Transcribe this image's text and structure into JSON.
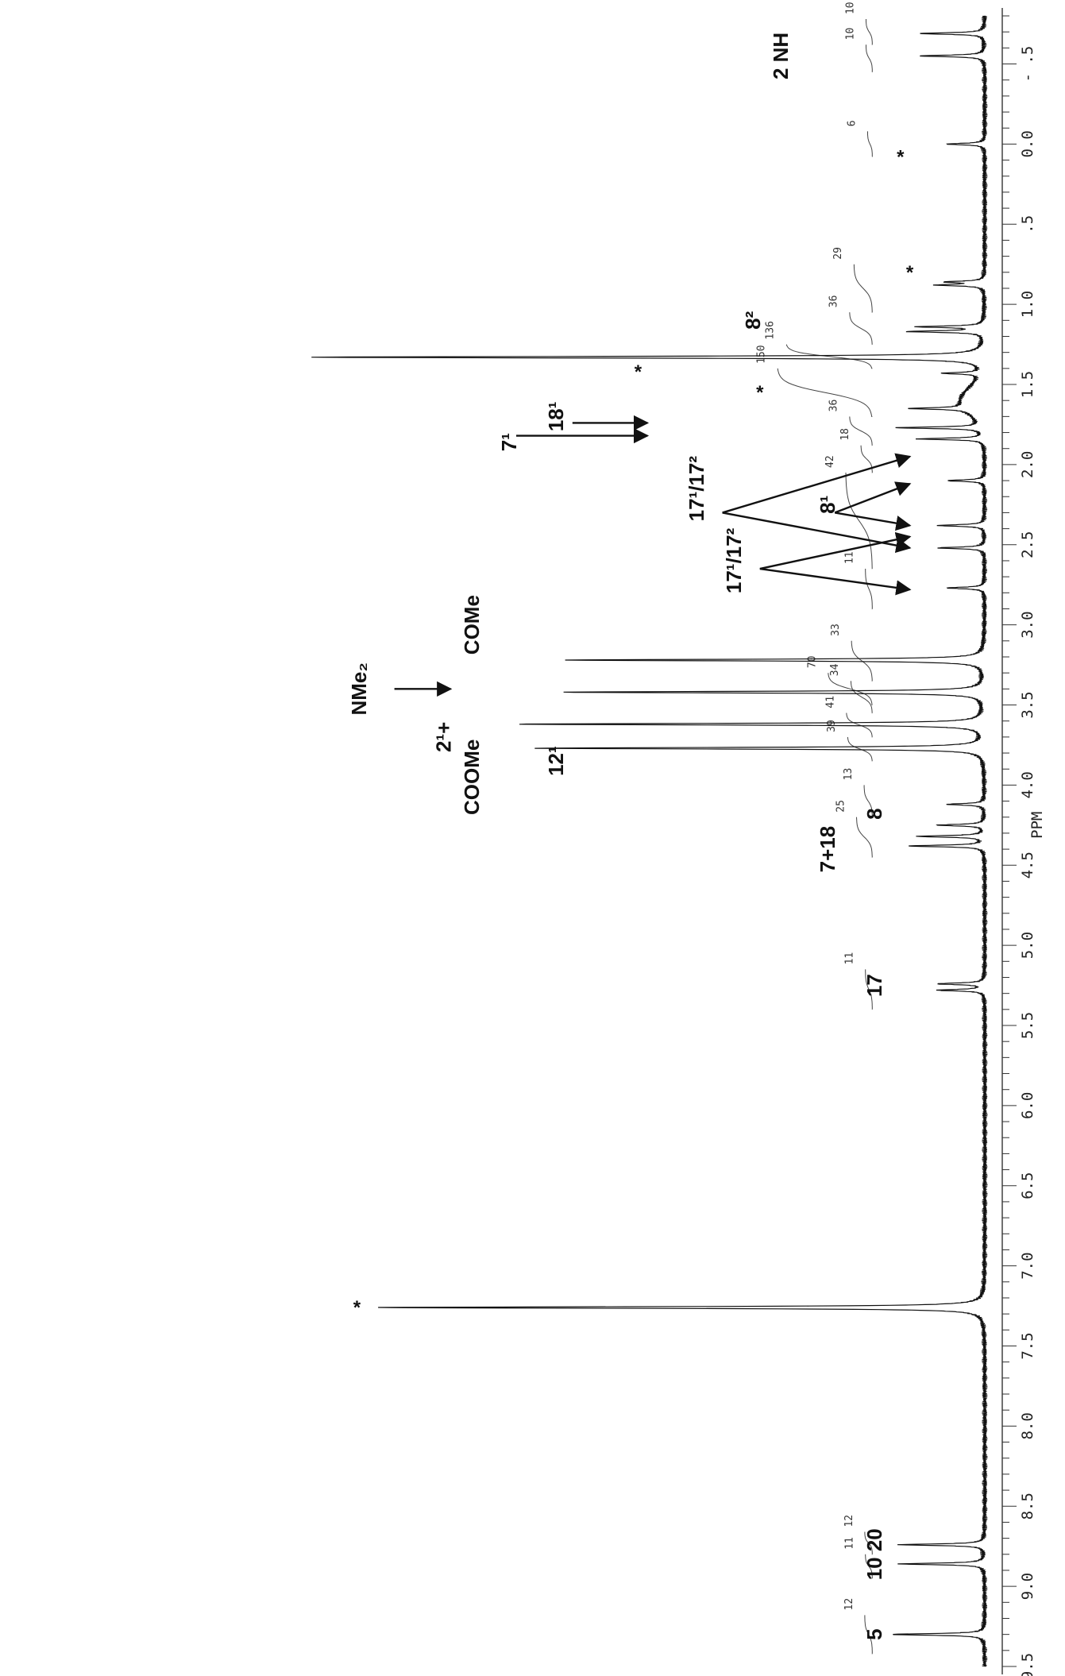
{
  "chart_data": {
    "type": "line",
    "title": "",
    "xlabel": "PPM",
    "ylabel": "",
    "xlim": [
      9.5,
      -0.8
    ],
    "orientation": "rotated-90",
    "x_ticks": [
      "9.5",
      "9.0",
      "8.5",
      "8.0",
      "7.5",
      "7.0",
      "6.5",
      "6.0",
      "5.5",
      "5.0",
      "4.5",
      "4.0",
      "3.5",
      "3.0",
      "2.5",
      "2.0",
      "1.5",
      "1.0",
      ".5",
      "0.0",
      "- .5"
    ],
    "peaks": [
      {
        "ppm": 9.3,
        "height": 0.1
      },
      {
        "ppm": 8.86,
        "height": 0.09
      },
      {
        "ppm": 8.74,
        "height": 0.09
      },
      {
        "ppm": 7.26,
        "height": 0.65
      },
      {
        "ppm": 5.28,
        "height": 0.05
      },
      {
        "ppm": 5.24,
        "height": 0.05
      },
      {
        "ppm": 4.38,
        "height": 0.08
      },
      {
        "ppm": 4.32,
        "height": 0.07
      },
      {
        "ppm": 4.25,
        "height": 0.05
      },
      {
        "ppm": 4.12,
        "height": 0.04
      },
      {
        "ppm": 3.77,
        "height": 0.48
      },
      {
        "ppm": 3.62,
        "height": 0.5
      },
      {
        "ppm": 3.42,
        "height": 0.45
      },
      {
        "ppm": 3.22,
        "height": 0.45
      },
      {
        "ppm": 2.77,
        "height": 0.04
      },
      {
        "ppm": 2.52,
        "height": 0.05
      },
      {
        "ppm": 2.38,
        "height": 0.05
      },
      {
        "ppm": 2.1,
        "height": 0.04
      },
      {
        "ppm": 1.84,
        "height": 0.07
      },
      {
        "ppm": 1.77,
        "height": 0.09
      },
      {
        "ppm": 1.65,
        "height": 0.06
      },
      {
        "ppm": 1.43,
        "height": 0.04
      },
      {
        "ppm": 1.33,
        "height": 0.72
      },
      {
        "ppm": 1.17,
        "height": 0.08
      },
      {
        "ppm": 1.14,
        "height": 0.07
      },
      {
        "ppm": 0.88,
        "height": 0.05
      },
      {
        "ppm": 0.86,
        "height": 0.04
      },
      {
        "ppm": 0.0,
        "height": 0.04
      },
      {
        "ppm": -0.55,
        "height": 0.07
      },
      {
        "ppm": -0.69,
        "height": 0.07
      }
    ],
    "integrals": [
      {
        "label": "12",
        "from": 9.42,
        "to": 9.18
      },
      {
        "label": "11",
        "from": 8.95,
        "to": 8.8
      },
      {
        "label": "12",
        "from": 8.8,
        "to": 8.66
      },
      {
        "label": "11",
        "from": 5.4,
        "to": 5.15
      },
      {
        "label": "25",
        "from": 4.45,
        "to": 4.2
      },
      {
        "label": "13",
        "from": 4.2,
        "to": 4.0
      },
      {
        "label": "39",
        "from": 3.85,
        "to": 3.7
      },
      {
        "label": "41",
        "from": 3.7,
        "to": 3.55
      },
      {
        "label": "34",
        "from": 3.55,
        "to": 3.35
      },
      {
        "label": "70",
        "from": 3.5,
        "to": 3.3
      },
      {
        "label": "33",
        "from": 3.35,
        "to": 3.1
      },
      {
        "label": "11",
        "from": 2.9,
        "to": 2.65
      },
      {
        "label": "42",
        "from": 2.65,
        "to": 2.05
      },
      {
        "label": "18",
        "from": 2.05,
        "to": 1.88
      },
      {
        "label": "36",
        "from": 1.88,
        "to": 1.7
      },
      {
        "label": "150",
        "from": 1.7,
        "to": 1.4
      },
      {
        "label": "136",
        "from": 1.4,
        "to": 1.25
      },
      {
        "label": "36",
        "from": 1.25,
        "to": 1.05
      },
      {
        "label": "29",
        "from": 1.05,
        "to": 0.75
      },
      {
        "label": "6",
        "from": 0.08,
        "to": -0.08
      },
      {
        "label": "10",
        "from": -0.45,
        "to": -0.62
      },
      {
        "label": "10",
        "from": -0.62,
        "to": -0.78
      }
    ],
    "assignments": [
      {
        "text": "5",
        "ppm": 9.3,
        "level": 0.11
      },
      {
        "text": "10 20",
        "ppm": 8.8,
        "level": 0.11
      },
      {
        "text": "17",
        "ppm": 5.25,
        "level": 0.11
      },
      {
        "text": "7+18",
        "ppm": 4.4,
        "level": 0.16
      },
      {
        "text": "8",
        "ppm": 4.18,
        "level": 0.11
      },
      {
        "text": "12¹",
        "ppm": 3.85,
        "level": 0.45
      },
      {
        "text": "2¹+",
        "ppm": 3.7,
        "level": 0.57
      },
      {
        "text": "COOMe",
        "ppm": 3.95,
        "level": 0.54
      },
      {
        "text": "NMe₂",
        "ppm": 3.4,
        "level": 0.66
      },
      {
        "text": "COMe",
        "ppm": 3.0,
        "level": 0.54
      },
      {
        "text": "17¹/17²",
        "ppm": 2.6,
        "level": 0.26
      },
      {
        "text": "17¹/17²",
        "ppm": 2.15,
        "level": 0.3
      },
      {
        "text": "8¹",
        "ppm": 2.25,
        "level": 0.16
      },
      {
        "text": "7¹",
        "ppm": 1.86,
        "level": 0.5
      },
      {
        "text": "18¹",
        "ppm": 1.7,
        "level": 0.45
      },
      {
        "text": "8²",
        "ppm": 1.1,
        "level": 0.24
      },
      {
        "text": "2 NH",
        "ppm": -0.55,
        "level": 0.21
      }
    ],
    "solvent_marks": [
      {
        "text": "*",
        "ppm": 7.26,
        "level": 0.67
      },
      {
        "text": "*",
        "ppm": 1.42,
        "level": 0.37
      },
      {
        "text": "*",
        "ppm": 1.55,
        "level": 0.24
      },
      {
        "text": "*",
        "ppm": 0.8,
        "level": 0.08
      },
      {
        "text": "*",
        "ppm": 0.08,
        "level": 0.09
      }
    ],
    "arrows": [
      {
        "from_ppm": 3.4,
        "from_level": 0.63,
        "to_ppm": 3.4,
        "to_level": 0.57
      },
      {
        "from_ppm": 1.82,
        "from_level": 0.5,
        "to_ppm": 1.82,
        "to_level": 0.36
      },
      {
        "from_ppm": 1.74,
        "from_level": 0.44,
        "to_ppm": 1.74,
        "to_level": 0.36
      },
      {
        "from_ppm": 2.3,
        "from_level": 0.28,
        "to_ppm": 1.95,
        "to_level": 0.08
      },
      {
        "from_ppm": 2.3,
        "from_level": 0.28,
        "to_ppm": 2.52,
        "to_level": 0.08
      },
      {
        "from_ppm": 2.65,
        "from_level": 0.24,
        "to_ppm": 2.45,
        "to_level": 0.08
      },
      {
        "from_ppm": 2.65,
        "from_level": 0.24,
        "to_ppm": 2.78,
        "to_level": 0.08
      },
      {
        "from_ppm": 2.3,
        "from_level": 0.16,
        "to_ppm": 2.12,
        "to_level": 0.08
      },
      {
        "from_ppm": 2.3,
        "from_level": 0.16,
        "to_ppm": 2.38,
        "to_level": 0.08
      }
    ]
  }
}
